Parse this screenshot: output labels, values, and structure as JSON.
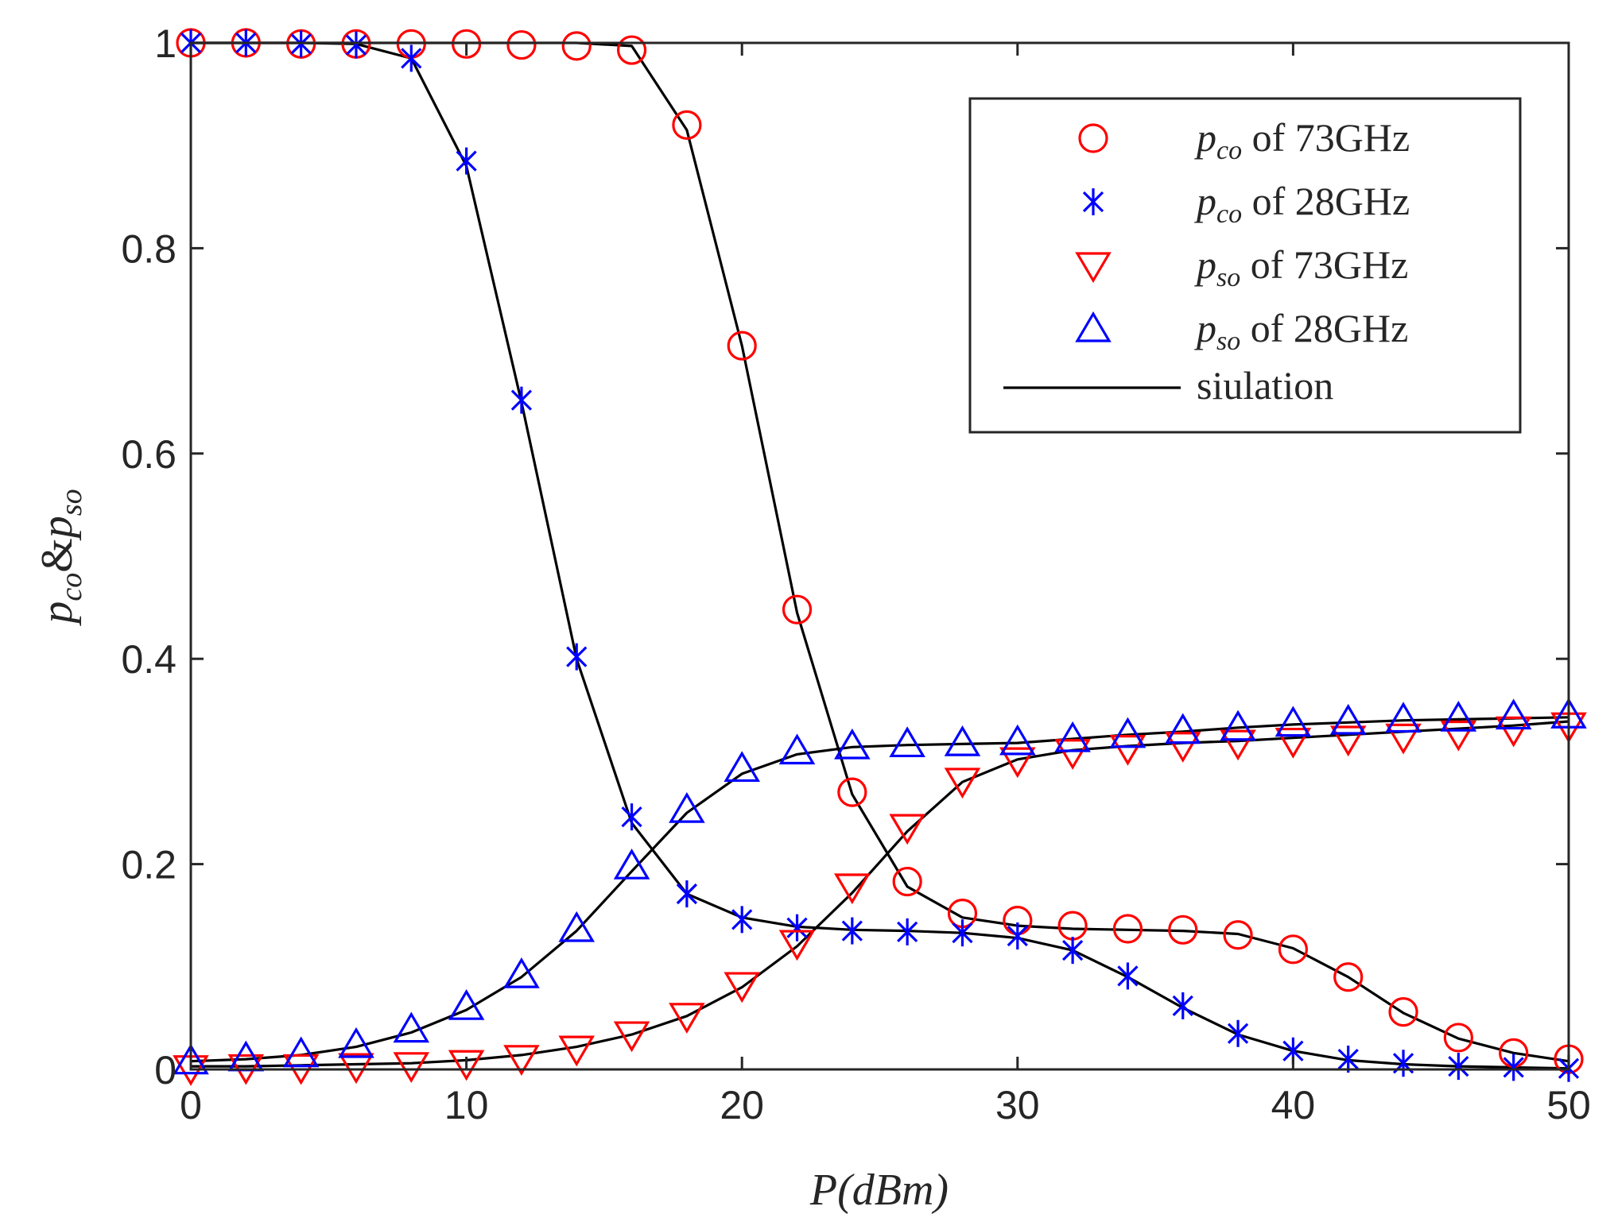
{
  "chart_data": {
    "type": "line",
    "title": "",
    "xlabel": "P(dBm)",
    "ylabel": "p_co&p_so",
    "ylabel_parts": {
      "base1": "p",
      "sub1": "co",
      "amp": "&",
      "base2": "p",
      "sub2": "so"
    },
    "xlim": [
      0,
      50
    ],
    "ylim": [
      0,
      1
    ],
    "xticks": [
      0,
      10,
      20,
      30,
      40,
      50
    ],
    "xtick_labels": [
      "0",
      "10",
      "20",
      "30",
      "40",
      "50"
    ],
    "yticks": [
      0,
      0.2,
      0.4,
      0.6,
      0.8,
      1
    ],
    "ytick_labels": [
      "0",
      "0.2",
      "0.4",
      "0.6",
      "0.8",
      "1"
    ],
    "grid": false,
    "legend_position": "top-right",
    "x": [
      0,
      2,
      4,
      6,
      8,
      10,
      12,
      14,
      16,
      18,
      20,
      22,
      24,
      26,
      28,
      30,
      32,
      34,
      36,
      38,
      40,
      42,
      44,
      46,
      48,
      50
    ],
    "series": [
      {
        "name": "p_co of 73GHz",
        "legend": {
          "var": "p",
          "sub": "co",
          "text": " of 73GHz"
        },
        "marker": "circle",
        "color": "#ff0000",
        "values": [
          1.0,
          1.0,
          0.999,
          0.999,
          0.999,
          0.999,
          0.998,
          0.997,
          0.993,
          0.92,
          0.705,
          0.448,
          0.27,
          0.183,
          0.152,
          0.145,
          0.14,
          0.137,
          0.136,
          0.131,
          0.117,
          0.09,
          0.056,
          0.031,
          0.016,
          0.01
        ]
      },
      {
        "name": "p_co of 28GHz",
        "legend": {
          "var": "p",
          "sub": "co",
          "text": " of 28GHz"
        },
        "marker": "asterisk",
        "color": "#0000ff",
        "values": [
          1.0,
          1.0,
          0.999,
          0.998,
          0.985,
          0.885,
          0.652,
          0.402,
          0.246,
          0.171,
          0.146,
          0.138,
          0.135,
          0.134,
          0.133,
          0.13,
          0.116,
          0.091,
          0.062,
          0.035,
          0.018,
          0.01,
          0.006,
          0.003,
          0.002,
          0.001
        ]
      },
      {
        "name": "p_so of 73GHz",
        "legend": {
          "var": "p",
          "sub": "so",
          "text": " of 73GHz"
        },
        "marker": "triangle-down",
        "color": "#ff0000",
        "values": [
          0.001,
          0.002,
          0.002,
          0.003,
          0.004,
          0.006,
          0.011,
          0.02,
          0.034,
          0.052,
          0.082,
          0.123,
          0.178,
          0.236,
          0.281,
          0.301,
          0.309,
          0.313,
          0.316,
          0.318,
          0.32,
          0.322,
          0.324,
          0.327,
          0.331,
          0.335
        ]
      },
      {
        "name": "p_so of 28GHz",
        "legend": {
          "var": "p",
          "sub": "so",
          "text": " of 28GHz"
        },
        "marker": "triangle-up",
        "color": "#0000ff",
        "values": [
          0.008,
          0.011,
          0.015,
          0.024,
          0.039,
          0.061,
          0.092,
          0.137,
          0.198,
          0.253,
          0.293,
          0.31,
          0.315,
          0.317,
          0.318,
          0.319,
          0.322,
          0.326,
          0.33,
          0.333,
          0.337,
          0.339,
          0.341,
          0.342,
          0.344,
          0.345
        ]
      }
    ],
    "simulation_curves": [
      {
        "source": "p_co of 73GHz",
        "values": [
          1.0,
          1.0,
          1.0,
          1.0,
          1.0,
          1.0,
          1.0,
          1.0,
          0.997,
          0.915,
          0.705,
          0.445,
          0.268,
          0.178,
          0.148,
          0.14,
          0.137,
          0.136,
          0.135,
          0.132,
          0.118,
          0.09,
          0.055,
          0.03,
          0.016,
          0.008
        ]
      },
      {
        "source": "p_co of 28GHz",
        "values": [
          1.0,
          1.0,
          1.0,
          0.999,
          0.985,
          0.88,
          0.65,
          0.4,
          0.24,
          0.171,
          0.148,
          0.139,
          0.136,
          0.135,
          0.133,
          0.128,
          0.116,
          0.09,
          0.06,
          0.034,
          0.018,
          0.009,
          0.005,
          0.003,
          0.002,
          0.001
        ]
      },
      {
        "source": "p_so of 73GHz",
        "values": [
          0.003,
          0.003,
          0.004,
          0.005,
          0.006,
          0.009,
          0.014,
          0.022,
          0.034,
          0.052,
          0.08,
          0.12,
          0.172,
          0.232,
          0.28,
          0.302,
          0.311,
          0.315,
          0.318,
          0.32,
          0.323,
          0.326,
          0.329,
          0.332,
          0.335,
          0.339
        ]
      },
      {
        "source": "p_so of 28GHz",
        "values": [
          0.008,
          0.01,
          0.014,
          0.022,
          0.036,
          0.058,
          0.09,
          0.135,
          0.193,
          0.25,
          0.288,
          0.307,
          0.314,
          0.316,
          0.317,
          0.318,
          0.322,
          0.326,
          0.329,
          0.333,
          0.336,
          0.338,
          0.34,
          0.341,
          0.342,
          0.343
        ]
      }
    ],
    "simulation_legend": "siulation",
    "simulation_color": "#000000"
  }
}
